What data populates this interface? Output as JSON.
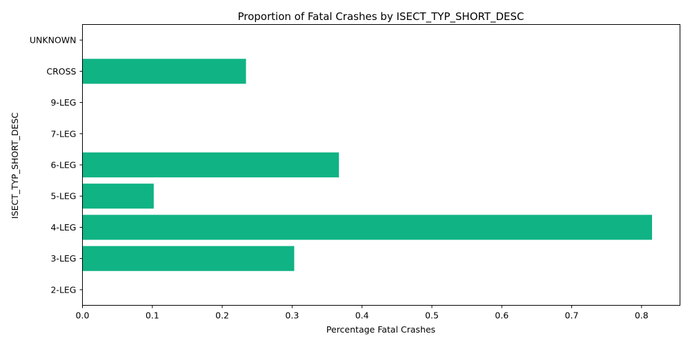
{
  "chart_data": {
    "type": "bar",
    "orientation": "horizontal",
    "title": "Proportion of Fatal Crashes by ISECT_TYP_SHORT_DESC",
    "xlabel": "Percentage Fatal Crashes",
    "ylabel": "ISECT_TYP_SHORT_DESC",
    "categories": [
      "2-LEG",
      "3-LEG",
      "4-LEG",
      "5-LEG",
      "6-LEG",
      "7-LEG",
      "9-LEG",
      "CROSS",
      "UNKNOWN"
    ],
    "values": [
      0.0,
      0.303,
      0.815,
      0.102,
      0.367,
      0.0,
      0.0,
      0.234,
      0.0
    ],
    "xlim": [
      0,
      0.855
    ],
    "xticks": [
      0.0,
      0.1,
      0.2,
      0.3,
      0.4,
      0.5,
      0.6,
      0.7,
      0.8
    ],
    "xtick_labels": [
      "0.0",
      "0.1",
      "0.2",
      "0.3",
      "0.4",
      "0.5",
      "0.6",
      "0.7",
      "0.8"
    ],
    "grid": false,
    "bar_color": "#10b384"
  }
}
